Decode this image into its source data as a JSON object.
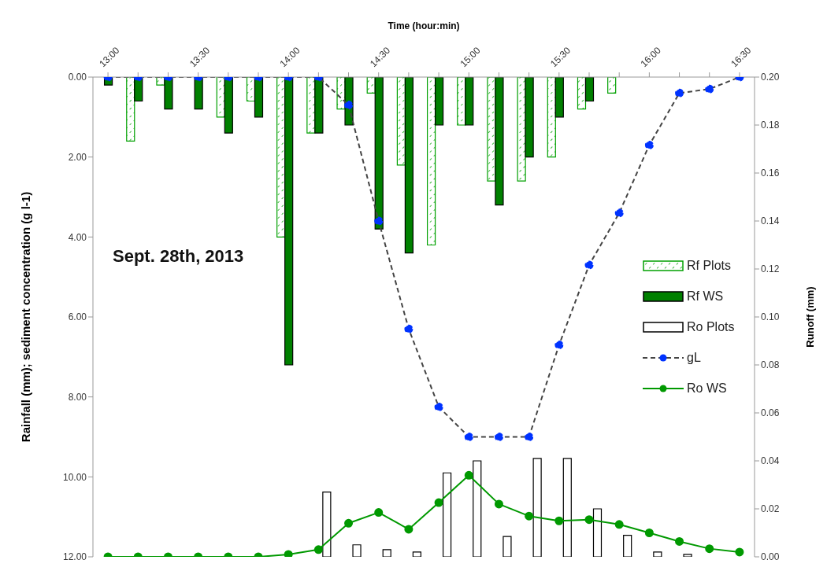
{
  "chart_data": {
    "type": "bar",
    "xlabel": "Time (hour:min)",
    "ylabel": "Rainfall (mm); sediment concentration (g l-1)",
    "y2label": "Runoff (mm)",
    "categories": [
      "13:00",
      null,
      null,
      "13:30",
      null,
      null,
      "14:00",
      null,
      null,
      "14:30",
      null,
      null,
      "15:00",
      null,
      null,
      "15:30",
      null,
      null,
      "16:00",
      null,
      null,
      "16:30"
    ],
    "series": [
      {
        "name": "Rf Plots",
        "color": "#00a000",
        "values": [
          0,
          1.6,
          0.2,
          0,
          1.0,
          0.6,
          4.0,
          1.4,
          0.8,
          0.4,
          2.2,
          4.2,
          1.2,
          2.6,
          2.6,
          2.0,
          0.8,
          0.4,
          0,
          0,
          0,
          0
        ]
      },
      {
        "name": "Rf WS",
        "color": "#008000",
        "values": [
          0.2,
          0.6,
          0.8,
          0.8,
          1.4,
          1.0,
          7.2,
          1.4,
          1.2,
          3.8,
          4.4,
          1.2,
          1.2,
          3.2,
          2.0,
          1.0,
          0.6,
          0,
          0,
          0,
          0,
          0
        ]
      },
      {
        "name": "Ro Plots",
        "axis": "y2",
        "color": "#ffffff",
        "values": [
          0,
          0,
          0,
          0,
          0,
          0,
          0,
          0.027,
          0.005,
          0.003,
          0.002,
          0.035,
          0.04,
          0.0085,
          0.041,
          0.041,
          0.02,
          0.009,
          0.002,
          0.001,
          0,
          0
        ]
      },
      {
        "name": "gL",
        "type": "line",
        "color": "#0033ff",
        "line_style": "dashed",
        "marker": "circle",
        "values": [
          0,
          0,
          0,
          0,
          0,
          0,
          0,
          0,
          0.7,
          3.6,
          6.3,
          8.25,
          9.0,
          9.0,
          9.0,
          6.7,
          4.7,
          3.4,
          1.7,
          0.4,
          0.3,
          0
        ]
      },
      {
        "name": "Ro WS",
        "type": "line",
        "axis": "y2",
        "color": "#009900",
        "line_style": "solid",
        "marker": "circle",
        "values": [
          0,
          0,
          0,
          0,
          0,
          0,
          0.001,
          0.003,
          0.014,
          0.0185,
          0.0115,
          0.0226,
          0.034,
          0.022,
          0.017,
          0.015,
          0.0155,
          0.0135,
          0.01,
          0.0064,
          0.0034,
          0.002
        ]
      }
    ],
    "ylim": [
      12,
      0
    ],
    "yticks": [
      {
        "value": 0,
        "label": "0.00"
      },
      {
        "value": 2,
        "label": "2.00"
      },
      {
        "value": 4,
        "label": "4.00"
      },
      {
        "value": 6,
        "label": "6.00"
      },
      {
        "value": 8,
        "label": "8.00"
      },
      {
        "value": 10,
        "label": "10.00"
      },
      {
        "value": 12,
        "label": "12.00"
      }
    ],
    "y2lim": [
      0,
      0.2
    ],
    "y2ticks": [
      {
        "value": 0,
        "label": "0.00"
      },
      {
        "value": 0.02,
        "label": "0.02"
      },
      {
        "value": 0.04,
        "label": "0.04"
      },
      {
        "value": 0.06,
        "label": "0.06"
      },
      {
        "value": 0.08,
        "label": "0.08"
      },
      {
        "value": 0.1,
        "label": "0.10"
      },
      {
        "value": 0.12,
        "label": "0.12"
      },
      {
        "value": 0.14,
        "label": "0.14"
      },
      {
        "value": 0.16,
        "label": "0.16"
      },
      {
        "value": 0.18,
        "label": "0.18"
      },
      {
        "value": 0.2,
        "label": "0.20"
      }
    ],
    "annotations": [
      "Sept. 28th, 2013"
    ],
    "legend": "right",
    "grid": false
  }
}
